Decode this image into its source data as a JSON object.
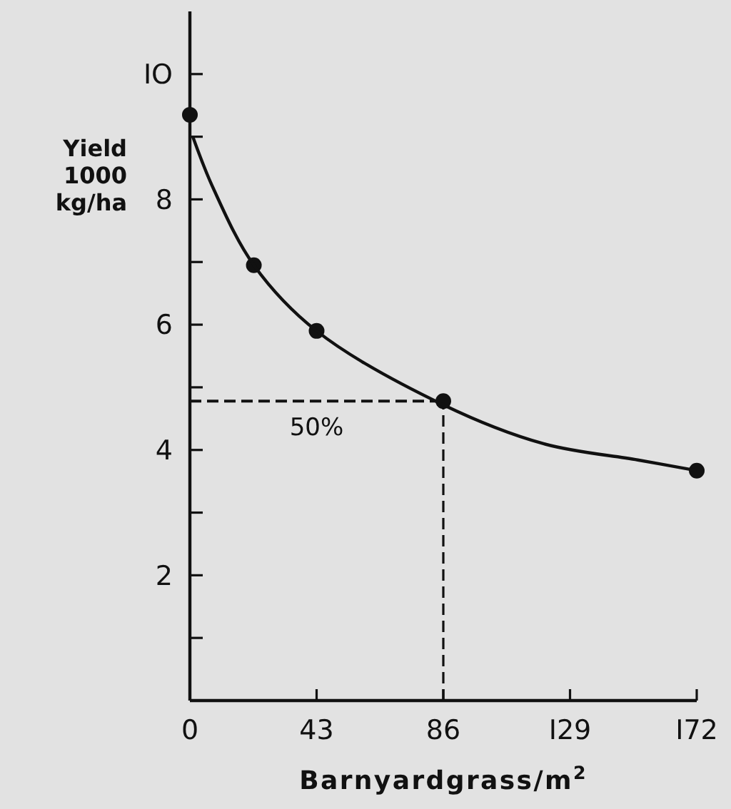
{
  "chart_data": {
    "type": "scatter",
    "xlabel": "Barnyardgrass/m$^{2}$",
    "ylabel": "Yield\n1000\nkg/ha",
    "xlim": [
      0,
      172
    ],
    "xticks": [
      0,
      43,
      86,
      {
        "value": 129,
        "label": "I29"
      },
      {
        "value": 172,
        "label": "I72"
      }
    ],
    "ylim": [
      0,
      11
    ],
    "yticks": [
      {
        "value": 1,
        "label": null
      },
      2,
      {
        "value": 3,
        "label": null
      },
      4,
      {
        "value": 5,
        "label": null
      },
      6,
      {
        "value": 7,
        "label": null
      },
      8,
      {
        "value": 9,
        "label": null
      },
      {
        "value": 10,
        "label": "IO"
      }
    ],
    "series": [
      {
        "color": "#111111",
        "marker": "circle",
        "x": [
          0,
          21.7,
          43,
          86,
          172
        ],
        "values": [
          9.35,
          6.95,
          5.9,
          4.78,
          3.67
        ]
      },
      {
        "type": "line",
        "color": "#111111",
        "line_style": "solid",
        "marker": "none",
        "x": [
          1,
          8,
          21.7,
          43,
          86,
          120,
          152,
          172
        ],
        "values": [
          9.0,
          8.17,
          6.95,
          5.9,
          4.72,
          4.1,
          3.84,
          3.67
        ]
      }
    ],
    "ref_lines": [
      {
        "axis": "y",
        "value": 4.78,
        "line_style": "dashed",
        "color": "#111111"
      },
      {
        "axis": "x",
        "value": 86,
        "line_style": "dashed",
        "color": "#111111"
      }
    ],
    "annotations": [
      "50%"
    ]
  }
}
